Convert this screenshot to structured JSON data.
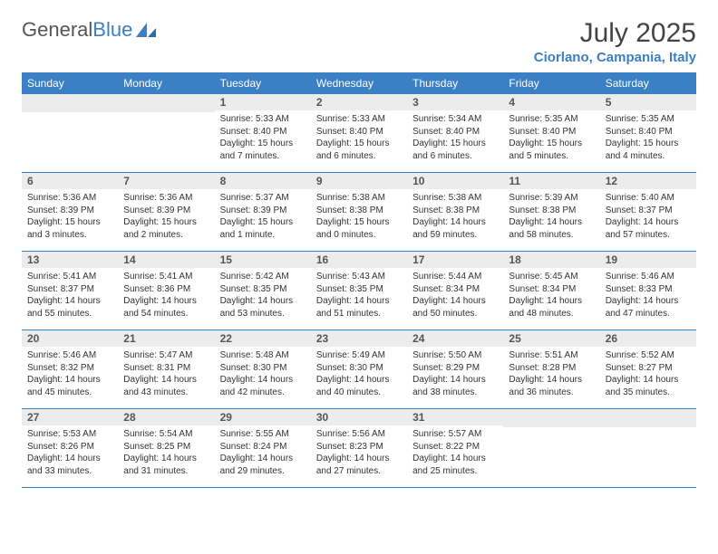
{
  "brand": {
    "part1": "General",
    "part2": "Blue"
  },
  "title": "July 2025",
  "location": "Ciorlano, Campania, Italy",
  "colors": {
    "header_bg": "#3b7fc4",
    "header_text": "#ffffff",
    "daynum_bg": "#ececec",
    "border": "#3b7fc4",
    "location_color": "#3b7fc4"
  },
  "day_headers": [
    "Sunday",
    "Monday",
    "Tuesday",
    "Wednesday",
    "Thursday",
    "Friday",
    "Saturday"
  ],
  "weeks": [
    [
      {
        "n": "",
        "lines": []
      },
      {
        "n": "",
        "lines": []
      },
      {
        "n": "1",
        "lines": [
          "Sunrise: 5:33 AM",
          "Sunset: 8:40 PM",
          "Daylight: 15 hours",
          "and 7 minutes."
        ]
      },
      {
        "n": "2",
        "lines": [
          "Sunrise: 5:33 AM",
          "Sunset: 8:40 PM",
          "Daylight: 15 hours",
          "and 6 minutes."
        ]
      },
      {
        "n": "3",
        "lines": [
          "Sunrise: 5:34 AM",
          "Sunset: 8:40 PM",
          "Daylight: 15 hours",
          "and 6 minutes."
        ]
      },
      {
        "n": "4",
        "lines": [
          "Sunrise: 5:35 AM",
          "Sunset: 8:40 PM",
          "Daylight: 15 hours",
          "and 5 minutes."
        ]
      },
      {
        "n": "5",
        "lines": [
          "Sunrise: 5:35 AM",
          "Sunset: 8:40 PM",
          "Daylight: 15 hours",
          "and 4 minutes."
        ]
      }
    ],
    [
      {
        "n": "6",
        "lines": [
          "Sunrise: 5:36 AM",
          "Sunset: 8:39 PM",
          "Daylight: 15 hours",
          "and 3 minutes."
        ]
      },
      {
        "n": "7",
        "lines": [
          "Sunrise: 5:36 AM",
          "Sunset: 8:39 PM",
          "Daylight: 15 hours",
          "and 2 minutes."
        ]
      },
      {
        "n": "8",
        "lines": [
          "Sunrise: 5:37 AM",
          "Sunset: 8:39 PM",
          "Daylight: 15 hours",
          "and 1 minute."
        ]
      },
      {
        "n": "9",
        "lines": [
          "Sunrise: 5:38 AM",
          "Sunset: 8:38 PM",
          "Daylight: 15 hours",
          "and 0 minutes."
        ]
      },
      {
        "n": "10",
        "lines": [
          "Sunrise: 5:38 AM",
          "Sunset: 8:38 PM",
          "Daylight: 14 hours",
          "and 59 minutes."
        ]
      },
      {
        "n": "11",
        "lines": [
          "Sunrise: 5:39 AM",
          "Sunset: 8:38 PM",
          "Daylight: 14 hours",
          "and 58 minutes."
        ]
      },
      {
        "n": "12",
        "lines": [
          "Sunrise: 5:40 AM",
          "Sunset: 8:37 PM",
          "Daylight: 14 hours",
          "and 57 minutes."
        ]
      }
    ],
    [
      {
        "n": "13",
        "lines": [
          "Sunrise: 5:41 AM",
          "Sunset: 8:37 PM",
          "Daylight: 14 hours",
          "and 55 minutes."
        ]
      },
      {
        "n": "14",
        "lines": [
          "Sunrise: 5:41 AM",
          "Sunset: 8:36 PM",
          "Daylight: 14 hours",
          "and 54 minutes."
        ]
      },
      {
        "n": "15",
        "lines": [
          "Sunrise: 5:42 AM",
          "Sunset: 8:35 PM",
          "Daylight: 14 hours",
          "and 53 minutes."
        ]
      },
      {
        "n": "16",
        "lines": [
          "Sunrise: 5:43 AM",
          "Sunset: 8:35 PM",
          "Daylight: 14 hours",
          "and 51 minutes."
        ]
      },
      {
        "n": "17",
        "lines": [
          "Sunrise: 5:44 AM",
          "Sunset: 8:34 PM",
          "Daylight: 14 hours",
          "and 50 minutes."
        ]
      },
      {
        "n": "18",
        "lines": [
          "Sunrise: 5:45 AM",
          "Sunset: 8:34 PM",
          "Daylight: 14 hours",
          "and 48 minutes."
        ]
      },
      {
        "n": "19",
        "lines": [
          "Sunrise: 5:46 AM",
          "Sunset: 8:33 PM",
          "Daylight: 14 hours",
          "and 47 minutes."
        ]
      }
    ],
    [
      {
        "n": "20",
        "lines": [
          "Sunrise: 5:46 AM",
          "Sunset: 8:32 PM",
          "Daylight: 14 hours",
          "and 45 minutes."
        ]
      },
      {
        "n": "21",
        "lines": [
          "Sunrise: 5:47 AM",
          "Sunset: 8:31 PM",
          "Daylight: 14 hours",
          "and 43 minutes."
        ]
      },
      {
        "n": "22",
        "lines": [
          "Sunrise: 5:48 AM",
          "Sunset: 8:30 PM",
          "Daylight: 14 hours",
          "and 42 minutes."
        ]
      },
      {
        "n": "23",
        "lines": [
          "Sunrise: 5:49 AM",
          "Sunset: 8:30 PM",
          "Daylight: 14 hours",
          "and 40 minutes."
        ]
      },
      {
        "n": "24",
        "lines": [
          "Sunrise: 5:50 AM",
          "Sunset: 8:29 PM",
          "Daylight: 14 hours",
          "and 38 minutes."
        ]
      },
      {
        "n": "25",
        "lines": [
          "Sunrise: 5:51 AM",
          "Sunset: 8:28 PM",
          "Daylight: 14 hours",
          "and 36 minutes."
        ]
      },
      {
        "n": "26",
        "lines": [
          "Sunrise: 5:52 AM",
          "Sunset: 8:27 PM",
          "Daylight: 14 hours",
          "and 35 minutes."
        ]
      }
    ],
    [
      {
        "n": "27",
        "lines": [
          "Sunrise: 5:53 AM",
          "Sunset: 8:26 PM",
          "Daylight: 14 hours",
          "and 33 minutes."
        ]
      },
      {
        "n": "28",
        "lines": [
          "Sunrise: 5:54 AM",
          "Sunset: 8:25 PM",
          "Daylight: 14 hours",
          "and 31 minutes."
        ]
      },
      {
        "n": "29",
        "lines": [
          "Sunrise: 5:55 AM",
          "Sunset: 8:24 PM",
          "Daylight: 14 hours",
          "and 29 minutes."
        ]
      },
      {
        "n": "30",
        "lines": [
          "Sunrise: 5:56 AM",
          "Sunset: 8:23 PM",
          "Daylight: 14 hours",
          "and 27 minutes."
        ]
      },
      {
        "n": "31",
        "lines": [
          "Sunrise: 5:57 AM",
          "Sunset: 8:22 PM",
          "Daylight: 14 hours",
          "and 25 minutes."
        ]
      },
      {
        "n": "",
        "lines": []
      },
      {
        "n": "",
        "lines": []
      }
    ]
  ]
}
